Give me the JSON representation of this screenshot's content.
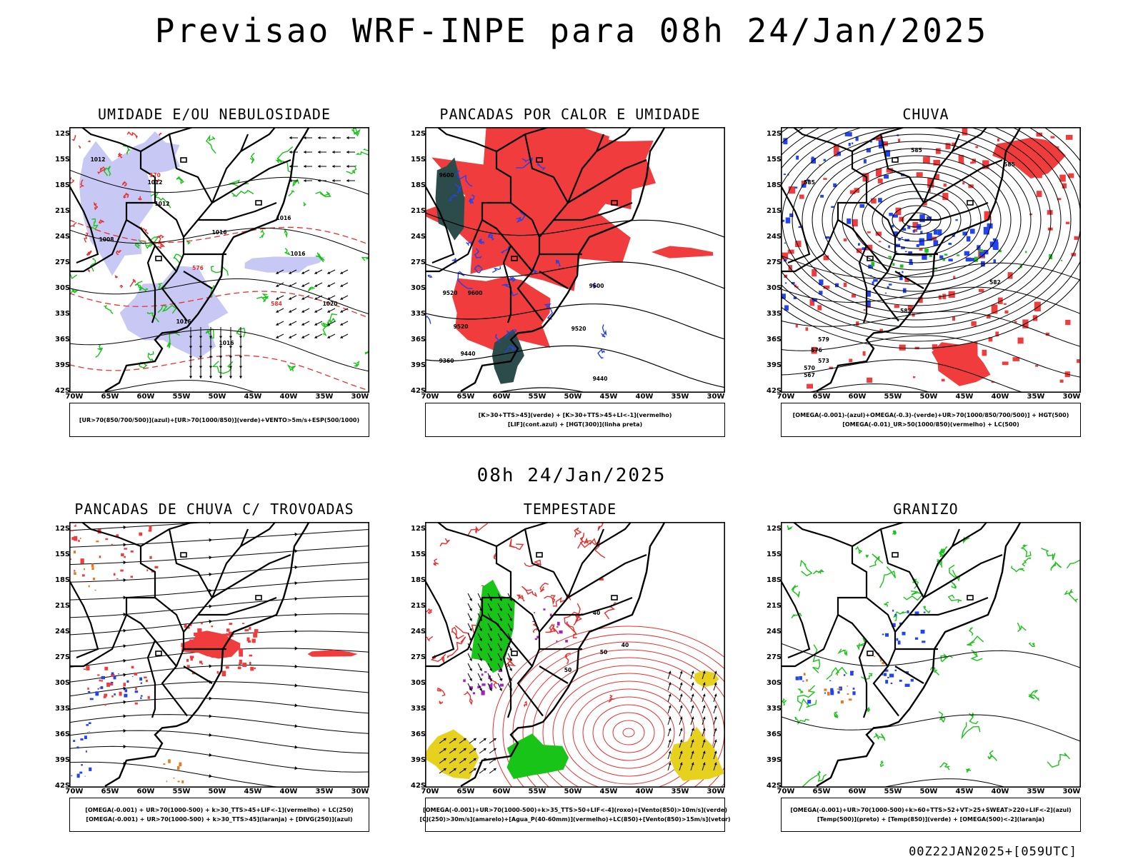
{
  "header": {
    "title": "Previsao WRF-INPE  para 08h 24/Jan/2025",
    "subtitle": "08h 24/Jan/2025",
    "run_stamp": "00Z22JAN2025+[059UTC]"
  },
  "axes": {
    "lat_labels": [
      "12S",
      "15S",
      "18S",
      "21S",
      "24S",
      "27S",
      "30S",
      "33S",
      "36S",
      "39S",
      "42S"
    ],
    "lon_labels": [
      "70W",
      "65W",
      "60W",
      "55W",
      "50W",
      "45W",
      "40W",
      "35W",
      "30W"
    ]
  },
  "colors": {
    "red": "#f03c3c",
    "red_line": "#e83030",
    "green": "#18c418",
    "blue": "#2244ee",
    "lavender": "#c8c8f5",
    "teal": "#2c4c4c",
    "yellow": "#e6d21e",
    "purple": "#a020c0",
    "orange": "#e87820",
    "black": "#000000"
  },
  "panels": [
    {
      "id": "umidade",
      "title": "UMIDADE E/OU NEBULOSIDADE",
      "legend_lines": [
        "[UR>70(850/700/500)](azul)+[UR>70(1000/850)](verde)+VENTO>5m/s+ESP(500/1000)"
      ],
      "contour_labels": [
        "1012",
        "1012",
        "1012",
        "1016",
        "1016",
        "1016",
        "1016",
        "1016",
        "1020",
        "1008",
        "570",
        "576",
        "584"
      ]
    },
    {
      "id": "pancadas_calor",
      "title": "PANCADAS POR CALOR E UMIDADE",
      "legend_lines": [
        "[K>30+TTS>45](verde) + [K>30+TTS>45+LI<-1](vermelho)",
        "[LIF](cont.azul) + [HGT(300)](linha preta)"
      ],
      "contour_labels": [
        "9600",
        "9600",
        "9600",
        "9520",
        "9520",
        "9520",
        "9440",
        "9440",
        "9360"
      ]
    },
    {
      "id": "chuva",
      "title": "CHUVA",
      "legend_lines": [
        "[OMEGA(-0.001)-(azul)+OMEGA(-0.3)-(verde)+UR>70(1000/850/700/500)] + HGT(500)",
        "[OMEGA(-0.01)_UR>50(1000/850)(vermelho) + LC(500)"
      ],
      "contour_labels": [
        "585",
        "585",
        "585",
        "582",
        "582",
        "579",
        "576",
        "573",
        "570",
        "567"
      ]
    },
    {
      "id": "trovoadas",
      "title": "PANCADAS DE CHUVA C/ TROVOADAS",
      "legend_lines": [
        "[OMEGA(-0.001) + UR>70(1000-500) + k>30_TTS>45+LIF<-1](vermelho) + LC(250)",
        "[OMEGA(-0.001) + UR>70(1000-500) + k>30_TTS>45](laranja) + [DIVG(250)](azul)"
      ],
      "contour_labels": []
    },
    {
      "id": "tempestade",
      "title": "TEMPESTADE",
      "legend_lines": [
        "[OMEGA(-0.001)+UR>70(1000-500)+k>35_TTS>50+LIF<-4](roxo)+[Vento(850)>10m/s](verde)",
        "[CJ(250)>30m/s](amarelo)+[Agua_P(40-60mm)](vermelho)+LC(850)+[Vento(850)>15m/s](vetor)"
      ],
      "contour_labels": [
        "40",
        "40",
        "50",
        "50"
      ]
    },
    {
      "id": "granizo",
      "title": "GRANIZO",
      "legend_lines": [
        "[OMEGA(-0.001)+UR>70(1000-500)+k>60+TTS>52+VT>25+SWEAT>220+LIF<-2](azul)",
        "[Temp(500)](preto) + [Temp(850)](verde) + [OMEGA(500)<-2](laranja)"
      ],
      "contour_labels": []
    }
  ]
}
